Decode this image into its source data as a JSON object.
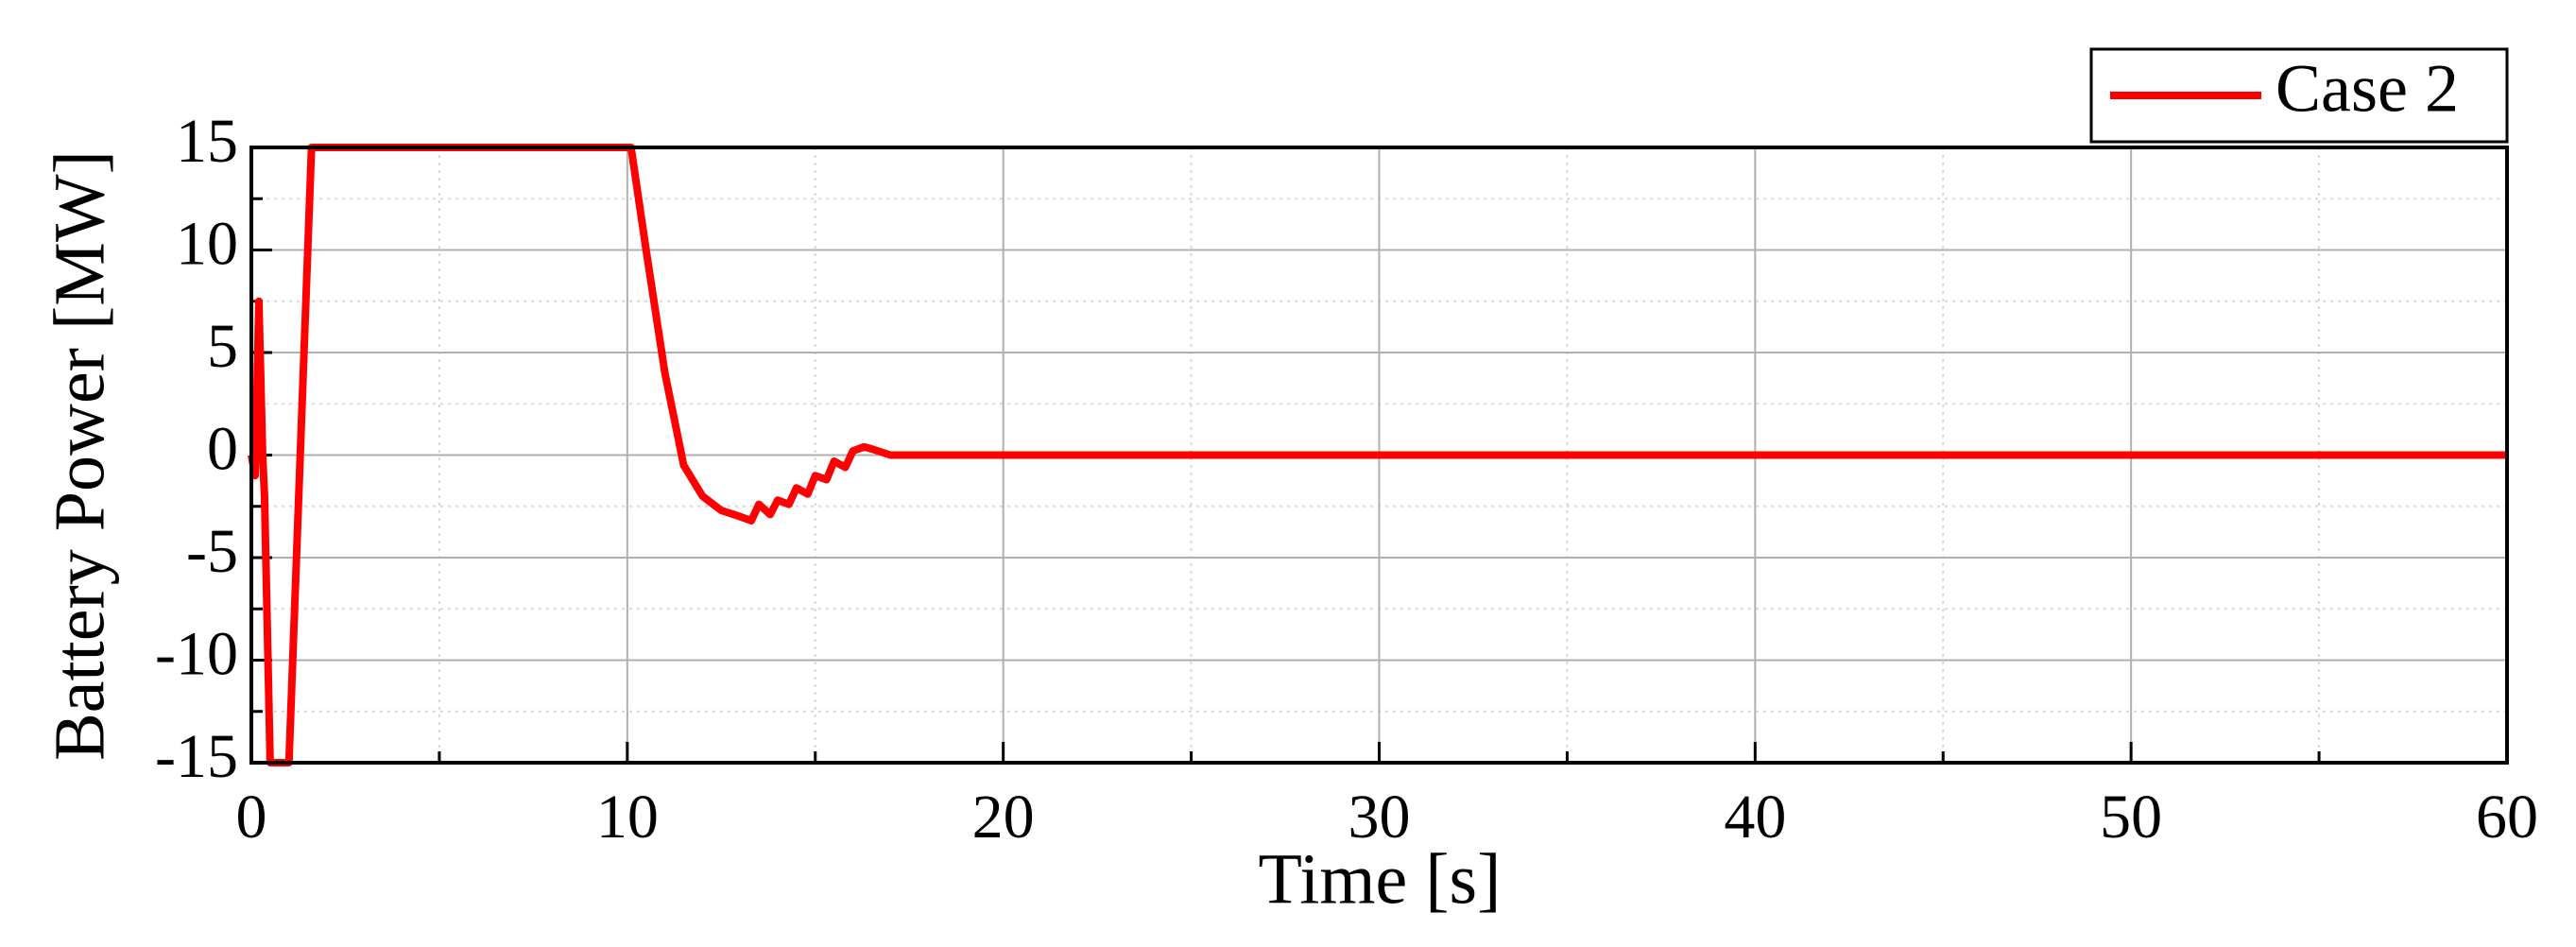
{
  "chart_data": {
    "type": "line",
    "xlabel": "Time [s]",
    "ylabel": "Battery Power [MW]",
    "x": [
      0,
      0.1,
      0.2,
      0.3,
      0.35,
      0.5,
      0.8,
      1.0,
      1.6,
      2,
      10.1,
      10.5,
      11,
      11.5,
      12,
      12.5,
      13,
      13.3,
      13.5,
      13.8,
      14,
      14.3,
      14.5,
      14.8,
      15,
      15.3,
      15.5,
      15.8,
      16,
      16.3,
      16.5,
      17,
      18,
      20,
      30,
      40,
      50,
      60
    ],
    "series": [
      {
        "name": "Case 2",
        "color": "#ff0000",
        "values": [
          0,
          -1,
          7.5,
          0,
          -2,
          -15,
          -15,
          -15,
          15,
          15,
          15,
          10,
          4,
          -0.5,
          -2,
          -2.7,
          -3,
          -3.2,
          -2.4,
          -2.9,
          -2.2,
          -2.4,
          -1.6,
          -1.9,
          -1,
          -1.2,
          -0.3,
          -0.6,
          0.2,
          0.4,
          0.3,
          0,
          0,
          0,
          0,
          0,
          0,
          0
        ]
      }
    ],
    "xlim": [
      0,
      60
    ],
    "ylim": [
      -15,
      15
    ],
    "xticks": [
      0,
      10,
      20,
      30,
      40,
      50,
      60
    ],
    "yticks": [
      -15,
      -10,
      -5,
      0,
      5,
      10,
      15
    ],
    "xminorticks": [
      5,
      15,
      25,
      35,
      45,
      55
    ],
    "yminorticks": [
      -12.5,
      -7.5,
      -2.5,
      2.5,
      7.5,
      12.5
    ],
    "grid": true,
    "legend": "top-right"
  }
}
